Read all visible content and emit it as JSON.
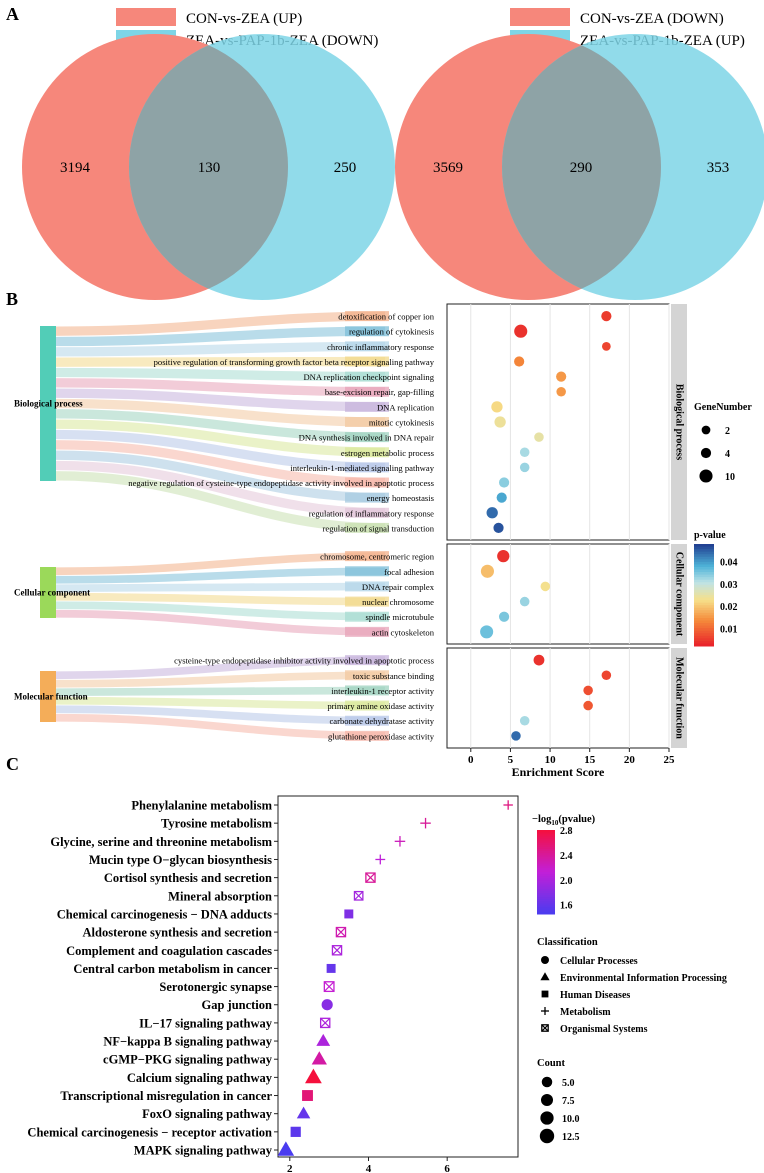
{
  "panel_labels": {
    "a": "A",
    "b": "B",
    "c": "C"
  },
  "chart_data": [
    {
      "type": "venn",
      "sets": [
        {
          "name": "CON-vs-ZEA (UP)",
          "color": "#f6877b",
          "only": 3194
        },
        {
          "name": "ZEA-vs-PAP-1b-ZEA (DOWN)",
          "color": "#7ed5e6",
          "only": 250
        }
      ],
      "intersection": 130
    },
    {
      "type": "venn",
      "sets": [
        {
          "name": "CON-vs-ZEA (DOWN)",
          "color": "#f6877b",
          "only": 3569
        },
        {
          "name": "ZEA-vs-PAP-1b-ZEA  (UP)",
          "color": "#7ed5e6",
          "only": 353
        }
      ],
      "intersection": 290
    },
    {
      "type": "scatter",
      "xlabel": "Enrichment Score",
      "xlim": [
        -3,
        25
      ],
      "xticks": [
        0,
        5,
        10,
        15,
        20,
        25
      ],
      "categories": [
        {
          "label": "Biological process",
          "color": "#52cdb7"
        },
        {
          "label": "Cellular component",
          "color": "#9bd95a"
        },
        {
          "label": "Molecular function",
          "color": "#f4ad59"
        }
      ],
      "facets": [
        {
          "label": "Biological process",
          "strip": "Biological process",
          "terms": [
            {
              "term": "detoxification of copper ion",
              "x": 17.1,
              "p": 0.005,
              "genes": 4
            },
            {
              "term": "regulation of cytokinesis",
              "x": 6.3,
              "p": 0.004,
              "genes": 10
            },
            {
              "term": "chronic inflammatory response",
              "x": 17.1,
              "p": 0.006,
              "genes": 2
            },
            {
              "term": "positive regulation of transforming growth factor beta receptor signaling pathway",
              "x": 6.1,
              "p": 0.013,
              "genes": 4
            },
            {
              "term": "DNA replication checkpoint signaling",
              "x": 11.4,
              "p": 0.015,
              "genes": 4
            },
            {
              "term": "base-excision repair, gap-filling",
              "x": 11.4,
              "p": 0.015,
              "genes": 3
            },
            {
              "term": "DNA replication",
              "x": 3.3,
              "p": 0.022,
              "genes": 6
            },
            {
              "term": "mitotic cytokinesis",
              "x": 3.7,
              "p": 0.024,
              "genes": 6
            },
            {
              "term": "DNA synthesis involved in DNA repair",
              "x": 8.6,
              "p": 0.025,
              "genes": 3
            },
            {
              "term": "estrogen metabolic process",
              "x": 6.8,
              "p": 0.032,
              "genes": 3
            },
            {
              "term": "interleukin-1-mediated signaling pathway",
              "x": 6.8,
              "p": 0.033,
              "genes": 3
            },
            {
              "term": "negative regulation of cysteine-type endopeptidase activity involved in apoptotic process",
              "x": 4.2,
              "p": 0.034,
              "genes": 4
            },
            {
              "term": "energy homeostasis",
              "x": 3.9,
              "p": 0.039,
              "genes": 4
            },
            {
              "term": "regulation of inflammatory response",
              "x": 2.7,
              "p": 0.044,
              "genes": 6
            },
            {
              "term": "regulation of signal transduction",
              "x": 3.5,
              "p": 0.046,
              "genes": 4
            }
          ]
        },
        {
          "label": "Cellular component",
          "strip": "Cellular component",
          "terms": [
            {
              "term": "chromosome, centromeric region",
              "x": 4.1,
              "p": 0.004,
              "genes": 8
            },
            {
              "term": "focal adhesion",
              "x": 2.1,
              "p": 0.019,
              "genes": 10
            },
            {
              "term": "DNA repair complex",
              "x": 9.4,
              "p": 0.023,
              "genes": 3
            },
            {
              "term": "nuclear chromosome",
              "x": 6.8,
              "p": 0.033,
              "genes": 3
            },
            {
              "term": "spindle microtubule",
              "x": 4.2,
              "p": 0.035,
              "genes": 4
            },
            {
              "term": "actin cytoskeleton",
              "x": 2.0,
              "p": 0.036,
              "genes": 10
            }
          ]
        },
        {
          "label": "Molecular function",
          "strip": "Molecular function",
          "terms": [
            {
              "term": "cysteine-type endopeptidase inhibitor activity involved in apoptotic process",
              "x": 8.6,
              "p": 0.004,
              "genes": 5
            },
            {
              "term": "toxic substance binding",
              "x": 17.1,
              "p": 0.006,
              "genes": 3
            },
            {
              "term": "interleukin-1 receptor activity",
              "x": 14.8,
              "p": 0.007,
              "genes": 3
            },
            {
              "term": "primary amine oxidase activity",
              "x": 14.8,
              "p": 0.008,
              "genes": 3
            },
            {
              "term": "carbonate dehydratase activity",
              "x": 6.8,
              "p": 0.032,
              "genes": 3
            },
            {
              "term": "glutathione peroxidase activity",
              "x": 5.7,
              "p": 0.044,
              "genes": 3
            }
          ]
        }
      ],
      "legend_size": {
        "title": "GeneNumber",
        "levels": [
          "2",
          "4",
          "10"
        ],
        "values": [
          2,
          4,
          10
        ]
      },
      "legend_color": {
        "title": "p-value",
        "ticks": [
          "0.04",
          "0.03",
          "0.02",
          "0.01"
        ],
        "tick_values": [
          0.04,
          0.03,
          0.02,
          0.01
        ],
        "range": [
          0.002,
          0.048
        ]
      }
    },
    {
      "type": "scatter",
      "xlim": [
        1.7,
        7.8
      ],
      "xticks": [
        2,
        4,
        6
      ],
      "pathways": [
        {
          "name": "Phenylalanine metabolism",
          "x": 7.55,
          "logp": 2.5,
          "count": 3.5,
          "class": "Metabolism"
        },
        {
          "name": "Tyrosine metabolism",
          "x": 5.45,
          "logp": 2.4,
          "count": 5.0,
          "class": "Metabolism"
        },
        {
          "name": "Glycine, serine and threonine metabolism",
          "x": 4.8,
          "logp": 2.25,
          "count": 5.0,
          "class": "Metabolism"
        },
        {
          "name": "Mucin type O−glycan biosynthesis",
          "x": 4.3,
          "logp": 2.1,
          "count": 4.0,
          "class": "Metabolism"
        },
        {
          "name": "Cortisol synthesis and secretion",
          "x": 4.05,
          "logp": 2.4,
          "count": 6.5,
          "class": "Organismal Systems"
        },
        {
          "name": "Mineral absorption",
          "x": 3.75,
          "logp": 1.95,
          "count": 5.0,
          "class": "Organismal Systems"
        },
        {
          "name": "Chemical carcinogenesis − DNA adducts",
          "x": 3.5,
          "logp": 1.75,
          "count": 5.0,
          "class": "Human Diseases"
        },
        {
          "name": "Aldosterone synthesis and secretion",
          "x": 3.3,
          "logp": 2.3,
          "count": 6.5,
          "class": "Organismal Systems"
        },
        {
          "name": "Complement and coagulation cascades",
          "x": 3.2,
          "logp": 2.0,
          "count": 6.5,
          "class": "Organismal Systems"
        },
        {
          "name": "Central carbon metabolism in cancer",
          "x": 3.05,
          "logp": 1.6,
          "count": 5.0,
          "class": "Human Diseases"
        },
        {
          "name": "Serotonergic synapse",
          "x": 3.0,
          "logp": 2.15,
          "count": 7.5,
          "class": "Organismal Systems"
        },
        {
          "name": "Gap junction",
          "x": 2.95,
          "logp": 1.8,
          "count": 6.0,
          "class": "Cellular Processes"
        },
        {
          "name": "IL−17 signaling pathway",
          "x": 2.9,
          "logp": 2.0,
          "count": 6.5,
          "class": "Organismal Systems"
        },
        {
          "name": "NF−kappa B signaling pathway",
          "x": 2.85,
          "logp": 2.0,
          "count": 7.5,
          "class": "Environmental Information Processing"
        },
        {
          "name": "cGMP−PKG signaling pathway",
          "x": 2.75,
          "logp": 2.35,
          "count": 10.0,
          "class": "Environmental Information Processing"
        },
        {
          "name": "Calcium signaling pathway",
          "x": 2.6,
          "logp": 2.8,
          "count": 13.0,
          "class": "Environmental Information Processing"
        },
        {
          "name": "Transcriptional misregulation in cancer",
          "x": 2.45,
          "logp": 2.55,
          "count": 9.0,
          "class": "Human Diseases"
        },
        {
          "name": "FoxO signaling pathway",
          "x": 2.35,
          "logp": 1.6,
          "count": 7.0,
          "class": "Environmental Information Processing"
        },
        {
          "name": "Chemical carcinogenesis − receptor activation",
          "x": 2.15,
          "logp": 1.55,
          "count": 7.5,
          "class": "Human Diseases"
        },
        {
          "name": "MAPK signaling pathway",
          "x": 1.9,
          "logp": 1.45,
          "count": 12.5,
          "class": "Environmental Information Processing"
        }
      ],
      "legend_color": {
        "title_main": "−log",
        "title_sub": "10",
        "title_rest": "(pvalue)",
        "ticks": [
          "2.8",
          "2.4",
          "2.0",
          "1.6"
        ],
        "tick_values": [
          2.8,
          2.4,
          2.0,
          1.6
        ],
        "range": [
          1.45,
          2.8
        ]
      },
      "legend_shape": {
        "title": "Classification",
        "items": [
          {
            "label": "Cellular Processes",
            "shape": "circle"
          },
          {
            "label": "Environmental Information Processing",
            "shape": "triangle"
          },
          {
            "label": "Human Diseases",
            "shape": "square"
          },
          {
            "label": "Metabolism",
            "shape": "plus"
          },
          {
            "label": "Organismal Systems",
            "shape": "box-x"
          }
        ]
      },
      "legend_size": {
        "title": "Count",
        "levels": [
          "5.0",
          "7.5",
          "10.0",
          "12.5"
        ],
        "values": [
          5.0,
          7.5,
          10.0,
          12.5
        ]
      }
    }
  ]
}
